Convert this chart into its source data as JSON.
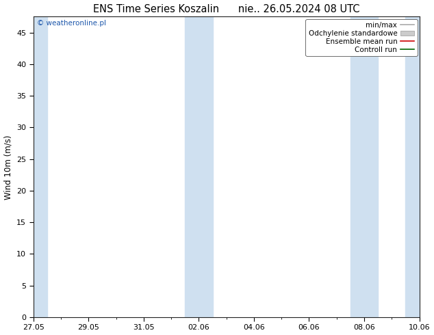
{
  "title": "ENS Time Series Koszalin      nie.. 26.05.2024 08 UTC",
  "ylabel": "Wind 10m (m/s)",
  "watermark": "© weatheronline.pl",
  "watermark_color": "#1a55aa",
  "background_color": "#ffffff",
  "plot_bg_color": "#ffffff",
  "ylim": [
    0,
    47.5
  ],
  "yticks": [
    0,
    5,
    10,
    15,
    20,
    25,
    30,
    35,
    40,
    45
  ],
  "xlim_start": 0.0,
  "xlim_end": 14.0,
  "xtick_labels": [
    "27.05",
    "29.05",
    "31.05",
    "02.06",
    "04.06",
    "06.06",
    "08.06",
    "10.06"
  ],
  "xtick_positions": [
    0.0,
    2.0,
    4.0,
    6.0,
    8.0,
    10.0,
    12.0,
    14.0
  ],
  "shaded_bands": [
    [
      0.0,
      0.5
    ],
    [
      5.5,
      6.5
    ],
    [
      11.5,
      12.5
    ],
    [
      13.5,
      14.0
    ]
  ],
  "shaded_color": "#cfe0f0",
  "legend_items": [
    {
      "label": "min/max",
      "color": "#aaaaaa",
      "lw": 1.2,
      "ls": "-",
      "type": "line"
    },
    {
      "label": "Odchylenie standardowe",
      "color": "#cccccc",
      "lw": 6,
      "ls": "-",
      "type": "patch"
    },
    {
      "label": "Ensemble mean run",
      "color": "#cc0000",
      "lw": 1.2,
      "ls": "-",
      "type": "line"
    },
    {
      "label": "Controll run",
      "color": "#006600",
      "lw": 1.2,
      "ls": "-",
      "type": "line"
    }
  ],
  "title_fontsize": 10.5,
  "axis_fontsize": 8.5,
  "tick_fontsize": 8,
  "legend_fontsize": 7.5,
  "watermark_fontsize": 7.5
}
